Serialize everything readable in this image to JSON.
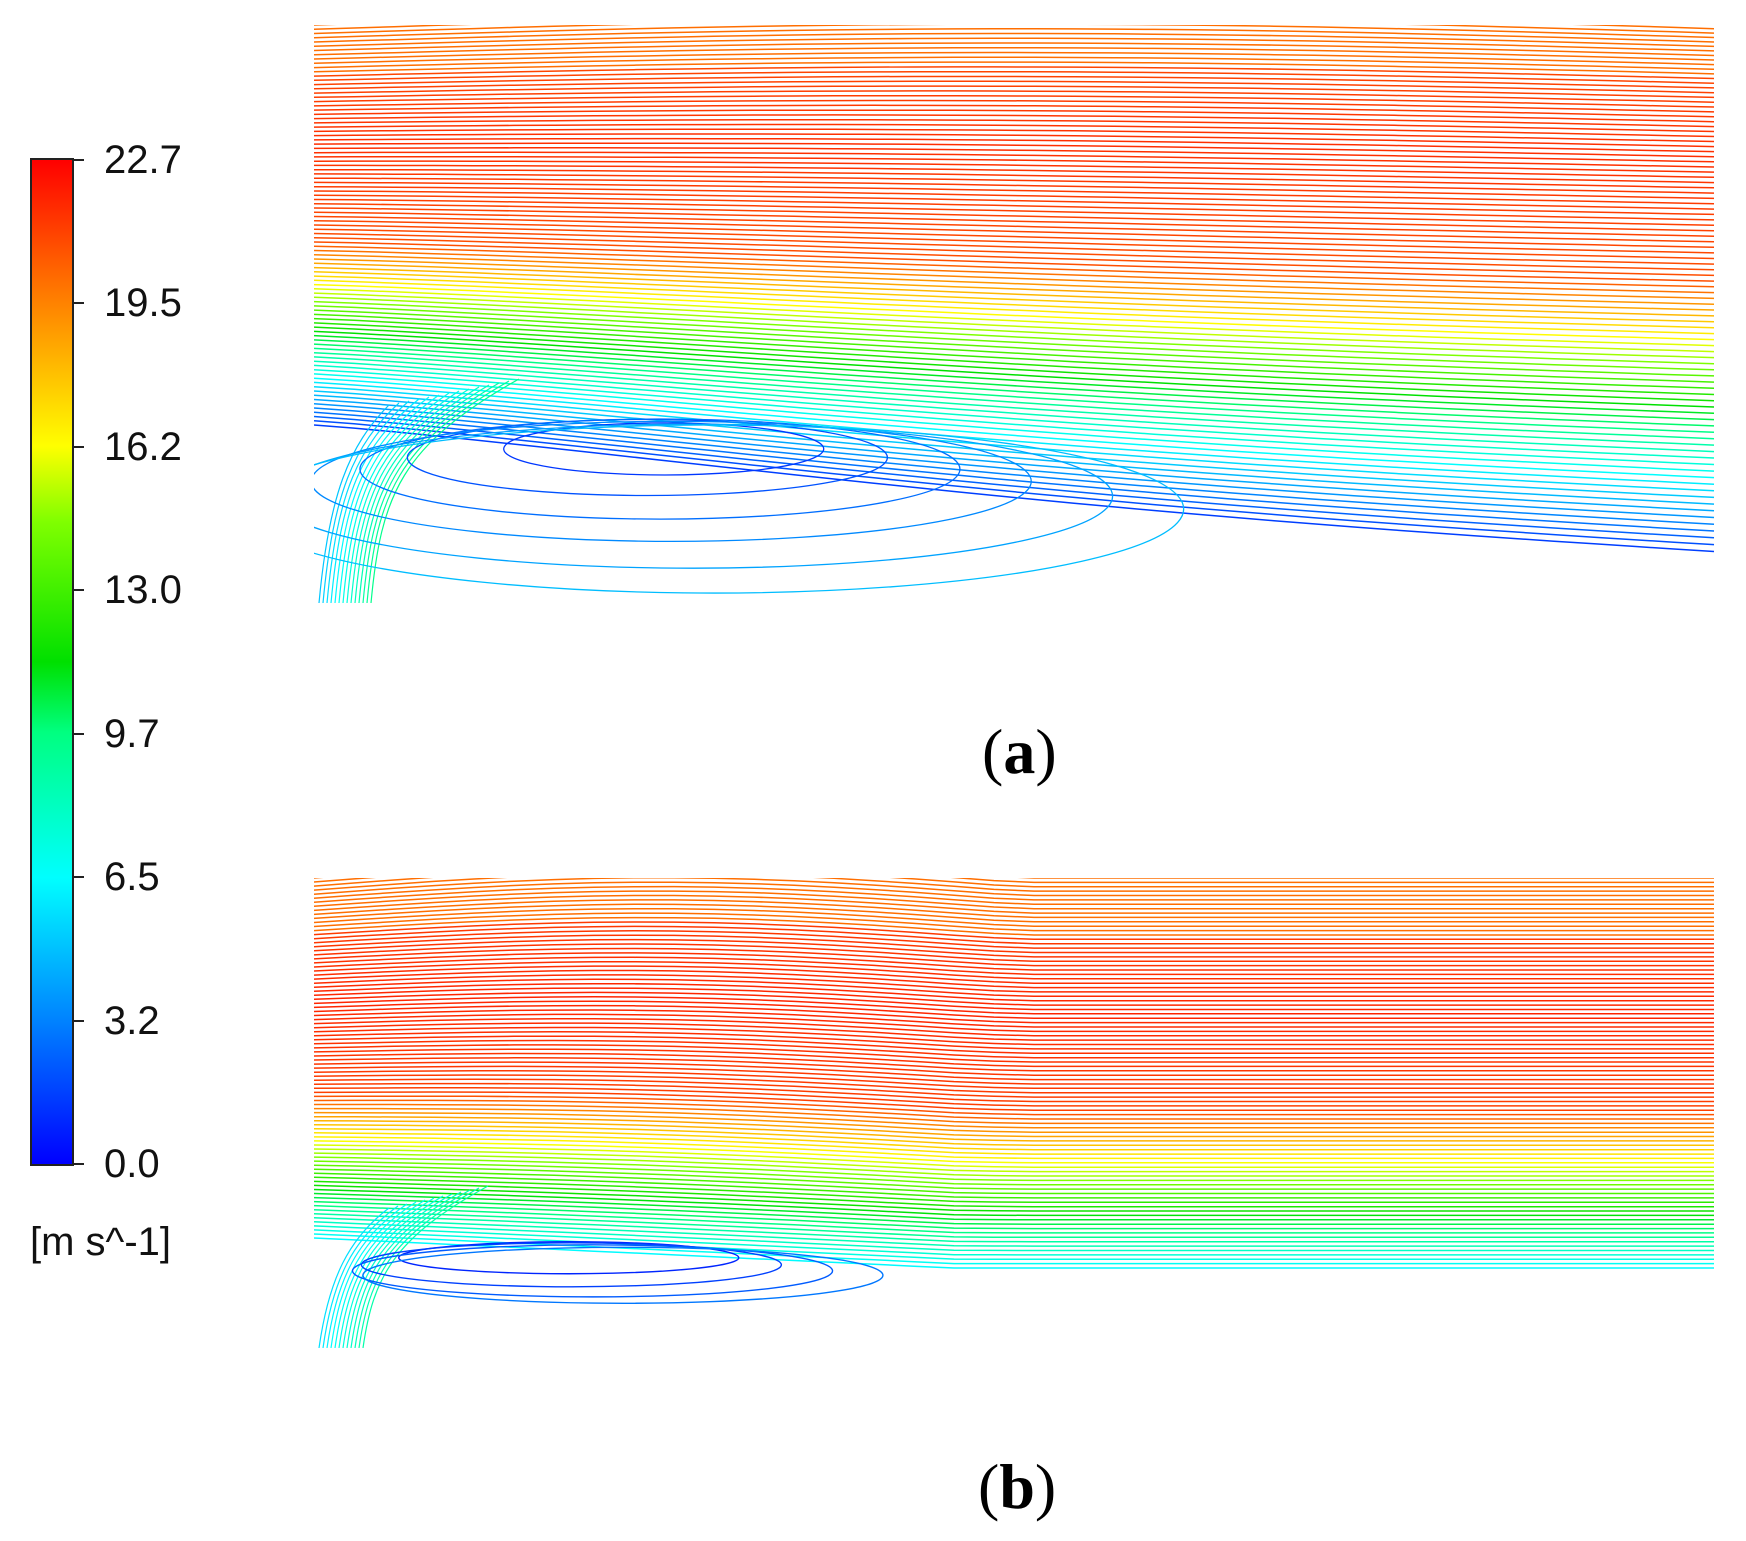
{
  "colorbar": {
    "ticks": [
      "22.7",
      "19.5",
      "16.2",
      "13.0",
      "9.7",
      "6.5",
      "3.2",
      "0.0"
    ],
    "unit": "[m s^-1]"
  },
  "panels": [
    {
      "label_open": "(",
      "label": "a",
      "label_close": ")"
    },
    {
      "label_open": "(",
      "label": "b",
      "label_close": ")"
    }
  ]
}
